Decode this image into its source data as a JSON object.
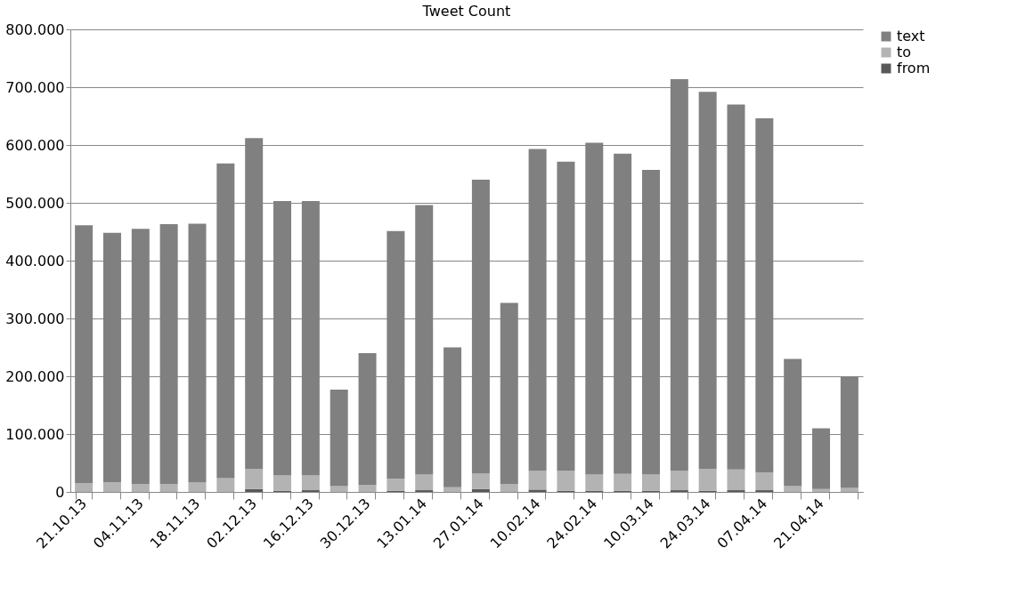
{
  "chart_data": {
    "type": "bar",
    "title": "Tweet Count",
    "stacked": true,
    "grid": "y",
    "legend": "right",
    "categories": [
      "21.10.13",
      null,
      "04.11.13",
      null,
      "18.11.13",
      null,
      "02.12.13",
      null,
      "16.12.13",
      null,
      "30.12.13",
      null,
      "13.01.14",
      null,
      "27.01.14",
      null,
      "10.02.14",
      null,
      "24.02.14",
      null,
      "10.03.14",
      null,
      "24.03.14",
      null,
      "07.04.14",
      null,
      "21.04.14",
      null
    ],
    "series": [
      {
        "name": "from",
        "color": "#595959",
        "values": [
          0,
          0,
          0,
          0,
          0,
          0,
          5000,
          2000,
          3000,
          0,
          0,
          2000,
          3000,
          0,
          5000,
          0,
          4000,
          2000,
          2000,
          2000,
          2000,
          3000,
          2000,
          3000,
          3000,
          0,
          0,
          0
        ]
      },
      {
        "name": "to",
        "color": "#b3b3b3",
        "values": [
          15000,
          17000,
          14000,
          14000,
          16000,
          24000,
          35000,
          27000,
          26000,
          10000,
          12000,
          21000,
          27000,
          8000,
          27000,
          14000,
          32000,
          34000,
          28000,
          29000,
          28000,
          33000,
          38000,
          36000,
          31000,
          10000,
          5000,
          7000
        ]
      },
      {
        "name": "text",
        "color": "#808080",
        "values": [
          446000,
          431000,
          441000,
          449000,
          448000,
          544000,
          572000,
          474000,
          474000,
          167000,
          228000,
          428000,
          466000,
          242000,
          508000,
          313000,
          557000,
          535000,
          574000,
          554000,
          527000,
          678000,
          652000,
          631000,
          612000,
          220000,
          105000,
          193000
        ]
      }
    ],
    "ylim": [
      0,
      800000
    ],
    "yticks": [
      0,
      {
        "value": 100000,
        "label": "100.000"
      },
      {
        "value": 200000,
        "label": "200.000"
      },
      {
        "value": 300000,
        "label": "300.000"
      },
      {
        "value": 400000,
        "label": "400.000"
      },
      {
        "value": 500000,
        "label": "500.000"
      },
      {
        "value": 600000,
        "label": "600.000"
      },
      {
        "value": 700000,
        "label": "700.000"
      },
      {
        "value": 800000,
        "label": "800.000"
      }
    ]
  }
}
